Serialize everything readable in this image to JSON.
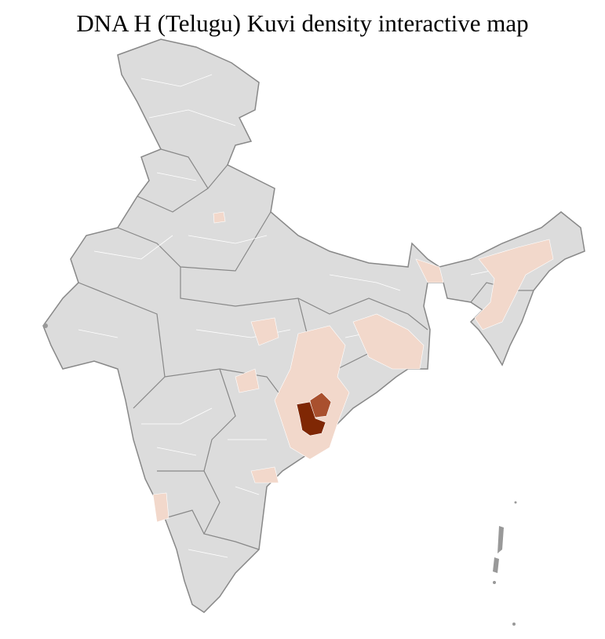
{
  "title": "DNA H (Telugu) Kuvi density interactive map"
}
